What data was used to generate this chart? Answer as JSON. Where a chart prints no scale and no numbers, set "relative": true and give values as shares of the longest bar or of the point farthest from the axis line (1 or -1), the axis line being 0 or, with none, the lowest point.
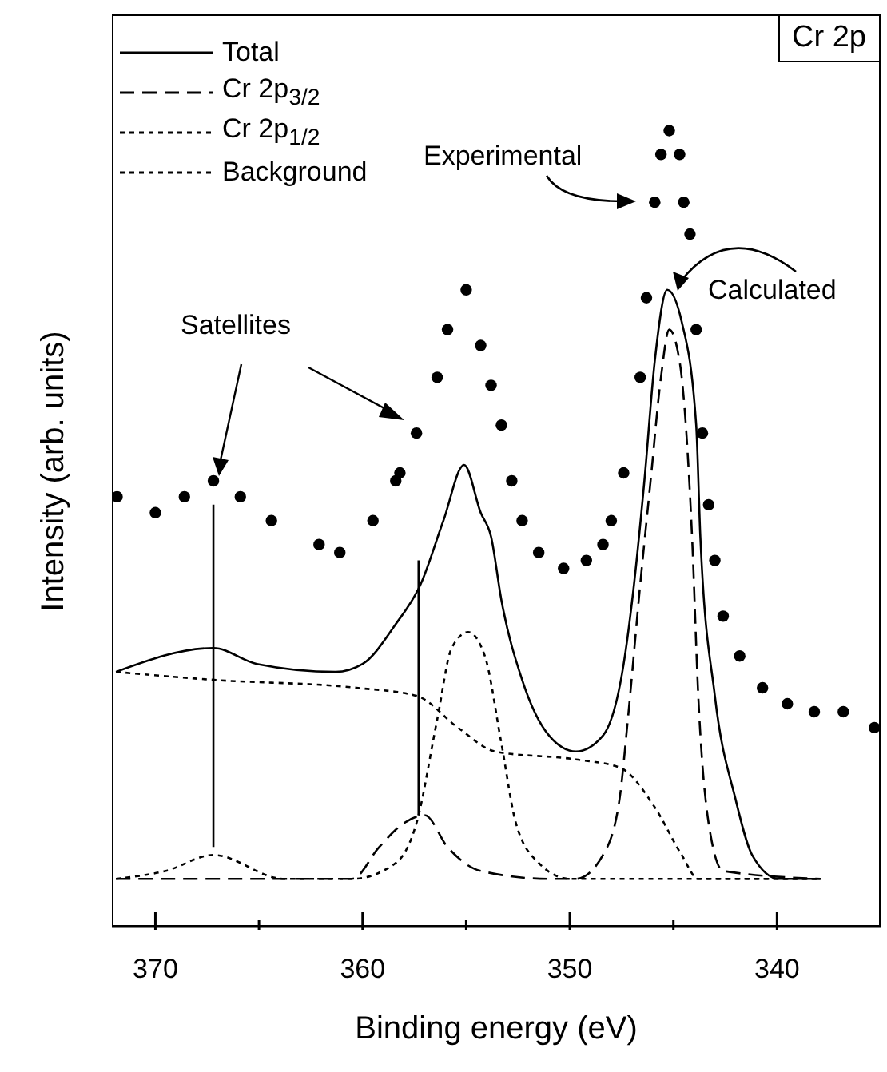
{
  "chart_data": {
    "type": "line",
    "relative": true,
    "xlabel": "Binding energy (eV)",
    "ylabel": "Intensity (arb. units)",
    "xlim": [
      372.1,
      335
    ],
    "xticks": [
      370,
      {
        "value": 365,
        "label": null
      },
      360,
      {
        "value": 355,
        "label": null
      },
      350,
      {
        "value": 345,
        "label": null
      },
      340
    ],
    "legend": "top left",
    "annotations": [
      "Cr 2p",
      "Experimental",
      "Calculated",
      "Satellites"
    ],
    "series": [
      {
        "type": "scatter",
        "marker": "circle",
        "color": "#000000",
        "x": [
          371.85,
          370.0,
          368.6,
          367.2,
          365.9,
          364.4,
          362.1,
          361.1,
          359.5,
          358.4,
          358.2,
          357.4,
          356.4,
          355.9,
          355.0,
          354.3,
          353.8,
          353.3,
          352.8,
          352.3,
          351.5,
          350.3,
          349.2,
          348.4,
          348.0,
          347.4,
          346.6,
          346.3,
          345.9,
          345.6,
          345.2,
          344.7,
          344.5,
          344.2,
          343.9,
          343.6,
          343.3,
          343.0,
          342.6,
          341.8,
          340.7,
          339.5,
          338.2,
          336.8,
          335.3
        ],
        "values": [
          0.54,
          0.52,
          0.54,
          0.56,
          0.54,
          0.51,
          0.48,
          0.47,
          0.51,
          0.56,
          0.57,
          0.62,
          0.69,
          0.75,
          0.8,
          0.73,
          0.68,
          0.63,
          0.56,
          0.51,
          0.47,
          0.45,
          0.46,
          0.48,
          0.51,
          0.57,
          0.69,
          0.79,
          0.91,
          0.97,
          1.0,
          0.97,
          0.91,
          0.87,
          0.75,
          0.62,
          0.53,
          0.46,
          0.39,
          0.34,
          0.3,
          0.28,
          0.27,
          0.27,
          0.25
        ]
      },
      {
        "name": "Total",
        "line_style": "solid",
        "color": "#000000",
        "x": [
          371.9,
          367.2,
          365.1,
          361.3,
          360.0,
          358.4,
          357.2,
          356.1,
          355.1,
          354.3,
          353.8,
          353.3,
          352.3,
          351.0,
          349.7,
          348.4,
          347.4,
          346.9,
          346.4,
          345.9,
          345.3,
          344.6,
          343.9,
          343.7,
          343.0,
          342.0,
          341.2,
          339.9,
          337.9
        ],
        "values": [
          0.32,
          0.35,
          0.33,
          0.32,
          0.33,
          0.38,
          0.43,
          0.51,
          0.58,
          0.52,
          0.49,
          0.41,
          0.31,
          0.24,
          0.22,
          0.24,
          0.33,
          0.43,
          0.56,
          0.71,
          0.8,
          0.76,
          0.63,
          0.49,
          0.29,
          0.16,
          0.09,
          0.06,
          0.06
        ]
      },
      {
        "name": "Cr 2p$_{3/2}$",
        "line_style": "dashed",
        "color": "#000000",
        "x": [
          371.9,
          362.0,
          360.5,
          359.2,
          358.0,
          357.0,
          355.9,
          354.3,
          351.0,
          349.7,
          348.4,
          347.6,
          347.2,
          346.6,
          346.1,
          345.6,
          345.2,
          344.7,
          344.3,
          344.1,
          343.8,
          343.3,
          342.6,
          337.9
        ],
        "values": [
          0.06,
          0.06,
          0.06,
          0.1,
          0.13,
          0.14,
          0.1,
          0.07,
          0.06,
          0.06,
          0.09,
          0.16,
          0.26,
          0.43,
          0.56,
          0.69,
          0.75,
          0.71,
          0.59,
          0.49,
          0.29,
          0.13,
          0.07,
          0.06
        ]
      },
      {
        "name": "Cr 2p$_{1/2}$",
        "line_style": "dotted",
        "color": "#000000",
        "x": [
          371.9,
          369.5,
          367.2,
          363.8,
          360.5,
          358.4,
          357.4,
          356.4,
          355.7,
          354.9,
          354.1,
          353.3,
          352.6,
          351.5,
          350.0,
          344.6,
          337.9
        ],
        "values": [
          0.06,
          0.07,
          0.09,
          0.06,
          0.06,
          0.08,
          0.13,
          0.26,
          0.35,
          0.37,
          0.34,
          0.23,
          0.13,
          0.08,
          0.06,
          0.06,
          0.06
        ]
      },
      {
        "name": "Background",
        "line_style": "dotted",
        "color": "#000000",
        "x": [
          371.9,
          367.2,
          360.3,
          357.4,
          355.4,
          353.6,
          349.7,
          347.6,
          345.9,
          344.6,
          343.8,
          337.9
        ],
        "values": [
          0.32,
          0.31,
          0.3,
          0.29,
          0.25,
          0.22,
          0.21,
          0.2,
          0.15,
          0.09,
          0.06,
          0.06
        ]
      },
      {
        "type": "line",
        "line_style": "solid",
        "color": "#000000",
        "x": [
          367.2,
          367.2
        ],
        "values": [
          0.1,
          0.53
        ]
      },
      {
        "type": "line",
        "line_style": "solid",
        "color": "#000000",
        "x": [
          357.3,
          357.3
        ],
        "values": [
          0.14,
          0.46
        ]
      }
    ]
  }
}
